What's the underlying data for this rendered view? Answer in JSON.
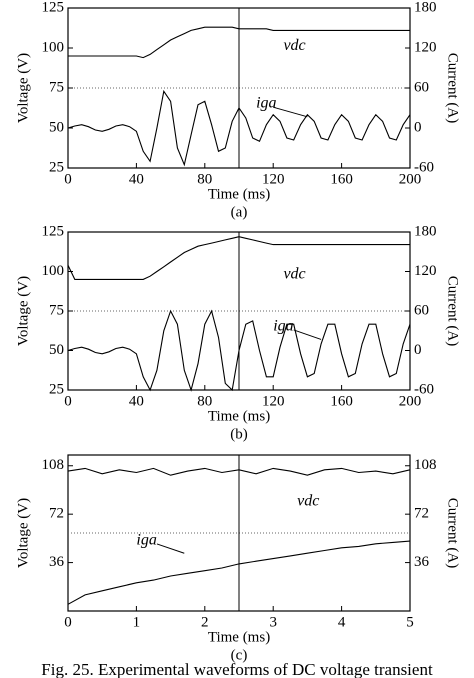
{
  "chart_data": [
    {
      "type": "line",
      "panel_label": "(a)",
      "xlabel": "Time (ms)",
      "ylabel": "Voltage (V)",
      "y2label": "Current (A)",
      "x": [
        0,
        4,
        8,
        12,
        16,
        20,
        24,
        28,
        32,
        36,
        40,
        44,
        48,
        52,
        56,
        60,
        64,
        68,
        72,
        76,
        80,
        84,
        88,
        92,
        96,
        100,
        104,
        108,
        112,
        116,
        120,
        124,
        128,
        132,
        136,
        140,
        144,
        148,
        152,
        156,
        160,
        164,
        168,
        172,
        176,
        180,
        184,
        188,
        192,
        196,
        200
      ],
      "xlim": [
        0,
        200
      ],
      "xticks": [
        0,
        40,
        80,
        120,
        160,
        200
      ],
      "ylim": [
        25,
        125
      ],
      "yticks": [
        25,
        50,
        75,
        100,
        125
      ],
      "y2lim": [
        -60,
        180
      ],
      "y2ticks": [
        -60,
        0,
        60,
        120,
        180
      ],
      "series": [
        {
          "name": "vdc",
          "color": "#000000",
          "axis": "y",
          "values": [
            95,
            95,
            95,
            95,
            95,
            95,
            95,
            95,
            95,
            95,
            95,
            94,
            96,
            99,
            102,
            105,
            107,
            109,
            111,
            112,
            113,
            113,
            113,
            113,
            113,
            112,
            112,
            112,
            112,
            112,
            111,
            111,
            111,
            111,
            111,
            111,
            111,
            111,
            111,
            111,
            111,
            111,
            111,
            111,
            111,
            111,
            111,
            111,
            111,
            111,
            111
          ]
        },
        {
          "name": "iga",
          "color": "#000000",
          "axis": "y2",
          "values": [
            0,
            3,
            5,
            2,
            -3,
            -5,
            -2,
            3,
            5,
            2,
            -5,
            -35,
            -50,
            0,
            55,
            40,
            -30,
            -55,
            -10,
            35,
            40,
            5,
            -35,
            -30,
            10,
            30,
            15,
            -15,
            -20,
            5,
            20,
            10,
            -15,
            -18,
            5,
            20,
            10,
            -15,
            -18,
            5,
            20,
            10,
            -15,
            -18,
            5,
            20,
            10,
            -15,
            -18,
            5,
            20
          ]
        }
      ]
    },
    {
      "type": "line",
      "panel_label": "(b)",
      "xlabel": "Time (ms)",
      "ylabel": "Voltage (V)",
      "y2label": "Current (A)",
      "x": [
        0,
        4,
        8,
        12,
        16,
        20,
        24,
        28,
        32,
        36,
        40,
        44,
        48,
        52,
        56,
        60,
        64,
        68,
        72,
        76,
        80,
        84,
        88,
        92,
        96,
        100,
        104,
        108,
        112,
        116,
        120,
        124,
        128,
        132,
        136,
        140,
        144,
        148,
        152,
        156,
        160,
        164,
        168,
        172,
        176,
        180,
        184,
        188,
        192,
        196,
        200
      ],
      "xlim": [
        0,
        200
      ],
      "xticks": [
        0,
        40,
        80,
        120,
        160,
        200
      ],
      "ylim": [
        25,
        125
      ],
      "yticks": [
        25,
        50,
        75,
        100,
        125
      ],
      "y2lim": [
        -60,
        180
      ],
      "y2ticks": [
        -60,
        0,
        60,
        120,
        180
      ],
      "series": [
        {
          "name": "vdc",
          "color": "#000000",
          "axis": "y",
          "values": [
            104,
            95,
            95,
            95,
            95,
            95,
            95,
            95,
            95,
            95,
            95,
            95,
            97,
            100,
            103,
            106,
            109,
            112,
            114,
            116,
            117,
            118,
            119,
            120,
            121,
            122,
            121,
            120,
            119,
            118,
            117,
            117,
            117,
            117,
            117,
            117,
            117,
            117,
            117,
            117,
            117,
            117,
            117,
            117,
            117,
            117,
            117,
            117,
            117,
            117,
            117
          ]
        },
        {
          "name": "iga",
          "color": "#000000",
          "axis": "y2",
          "values": [
            0,
            3,
            5,
            2,
            -3,
            -5,
            -2,
            3,
            5,
            2,
            -5,
            -40,
            -60,
            -30,
            30,
            60,
            40,
            -30,
            -60,
            -20,
            40,
            60,
            20,
            -50,
            -60,
            0,
            40,
            45,
            0,
            -40,
            -40,
            5,
            40,
            40,
            -5,
            -40,
            -35,
            10,
            40,
            40,
            -5,
            -40,
            -35,
            10,
            40,
            40,
            -5,
            -40,
            -35,
            10,
            40
          ]
        }
      ]
    },
    {
      "type": "line",
      "panel_label": "(c)",
      "xlabel": "Time (ms)",
      "ylabel": "Voltage (V)",
      "y2label": "Current (A)",
      "x": [
        0,
        0.25,
        0.5,
        0.75,
        1,
        1.25,
        1.5,
        1.75,
        2,
        2.25,
        2.5,
        2.75,
        3,
        3.25,
        3.5,
        3.75,
        4,
        4.25,
        4.5,
        4.75,
        5
      ],
      "xlim": [
        0,
        5
      ],
      "xticks": [
        0,
        1,
        2,
        3,
        4,
        5
      ],
      "ylim": [
        0,
        116
      ],
      "yticks": [
        36,
        72,
        108
      ],
      "y2lim": [
        0,
        116
      ],
      "y2ticks": [
        36,
        72,
        108
      ],
      "series": [
        {
          "name": "vdc",
          "color": "#000000",
          "axis": "y",
          "values": [
            104,
            106,
            102,
            105,
            103,
            106,
            101,
            104,
            106,
            103,
            105,
            102,
            106,
            104,
            101,
            105,
            106,
            103,
            104,
            102,
            105
          ]
        },
        {
          "name": "iga",
          "color": "#000000",
          "axis": "y2",
          "values": [
            5,
            12,
            15,
            18,
            21,
            23,
            26,
            28,
            30,
            32,
            35,
            37,
            39,
            41,
            43,
            45,
            47,
            48,
            50,
            51,
            52
          ]
        }
      ]
    }
  ],
  "caption": "Fig. 25. Experimental waveforms of DC voltage transient"
}
